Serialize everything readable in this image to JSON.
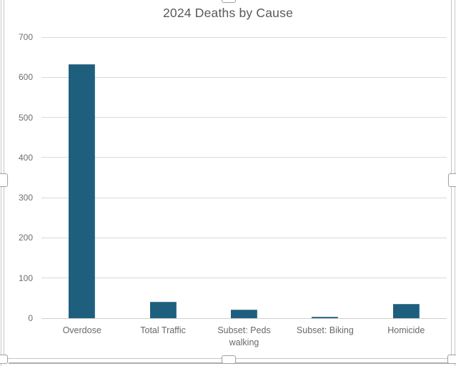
{
  "chart_data": {
    "type": "bar",
    "title": "2024 Deaths by Cause",
    "categories": [
      "Overdose",
      "Total Traffic",
      "Subset: Peds walking",
      "Subset: Biking",
      "Homicide"
    ],
    "values": [
      632,
      40,
      22,
      3,
      35
    ],
    "xlabel": "",
    "ylabel": "",
    "ylim": [
      0,
      700
    ],
    "yticks": [
      0,
      100,
      200,
      300,
      400,
      500,
      600,
      700
    ],
    "grid": true,
    "legend": "none",
    "bar_color": "#1E5F7E",
    "gridline_color": "#D9D9D9",
    "title_color": "#595959",
    "axis_text_color": "#6E6E6E"
  },
  "chrome": {
    "selection_handles": [
      "top-center",
      "middle-left",
      "middle-right",
      "bottom-left",
      "bottom-center",
      "bottom-right"
    ]
  }
}
